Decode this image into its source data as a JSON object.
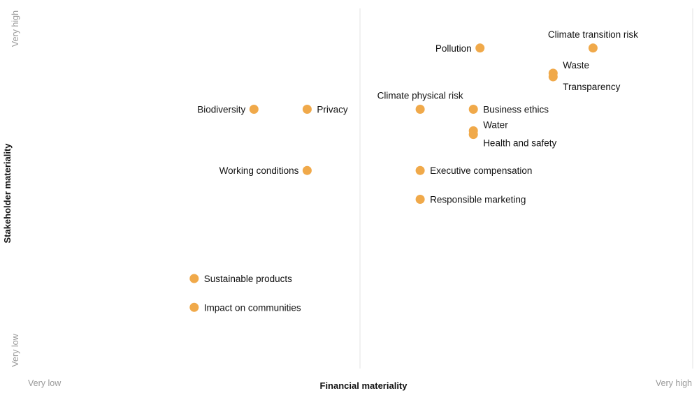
{
  "chart_data": {
    "type": "scatter",
    "xlabel": "Financial materiality",
    "ylabel": "Stakeholder materiality",
    "x_low_label": "Very low",
    "x_high_label": "Very high",
    "y_low_label": "Very low",
    "y_high_label": "Very high",
    "xlim": [
      0,
      10
    ],
    "ylim": [
      0,
      10
    ],
    "grid": "vertical midline and right edge only",
    "color": "#F0A94A",
    "points": [
      {
        "name": "Pollution",
        "x": 6.8,
        "y": 8.9
      },
      {
        "name": "Climate transition risk",
        "x": 8.5,
        "y": 8.9
      },
      {
        "name": "Waste",
        "x": 7.9,
        "y": 8.2
      },
      {
        "name": "Transparency",
        "x": 7.9,
        "y": 8.1
      },
      {
        "name": "Biodiversity",
        "x": 3.4,
        "y": 7.2
      },
      {
        "name": "Privacy",
        "x": 4.2,
        "y": 7.2
      },
      {
        "name": "Climate physical risk",
        "x": 5.9,
        "y": 7.2
      },
      {
        "name": "Business ethics",
        "x": 6.7,
        "y": 7.2
      },
      {
        "name": "Water",
        "x": 6.7,
        "y": 6.6
      },
      {
        "name": "Health and safety",
        "x": 6.7,
        "y": 6.5
      },
      {
        "name": "Working conditions",
        "x": 4.2,
        "y": 5.5
      },
      {
        "name": "Executive compensation",
        "x": 5.9,
        "y": 5.5
      },
      {
        "name": "Responsible marketing",
        "x": 5.9,
        "y": 4.7
      },
      {
        "name": "Sustainable products",
        "x": 2.5,
        "y": 2.5
      },
      {
        "name": "Impact on communities",
        "x": 2.5,
        "y": 1.7
      }
    ]
  }
}
